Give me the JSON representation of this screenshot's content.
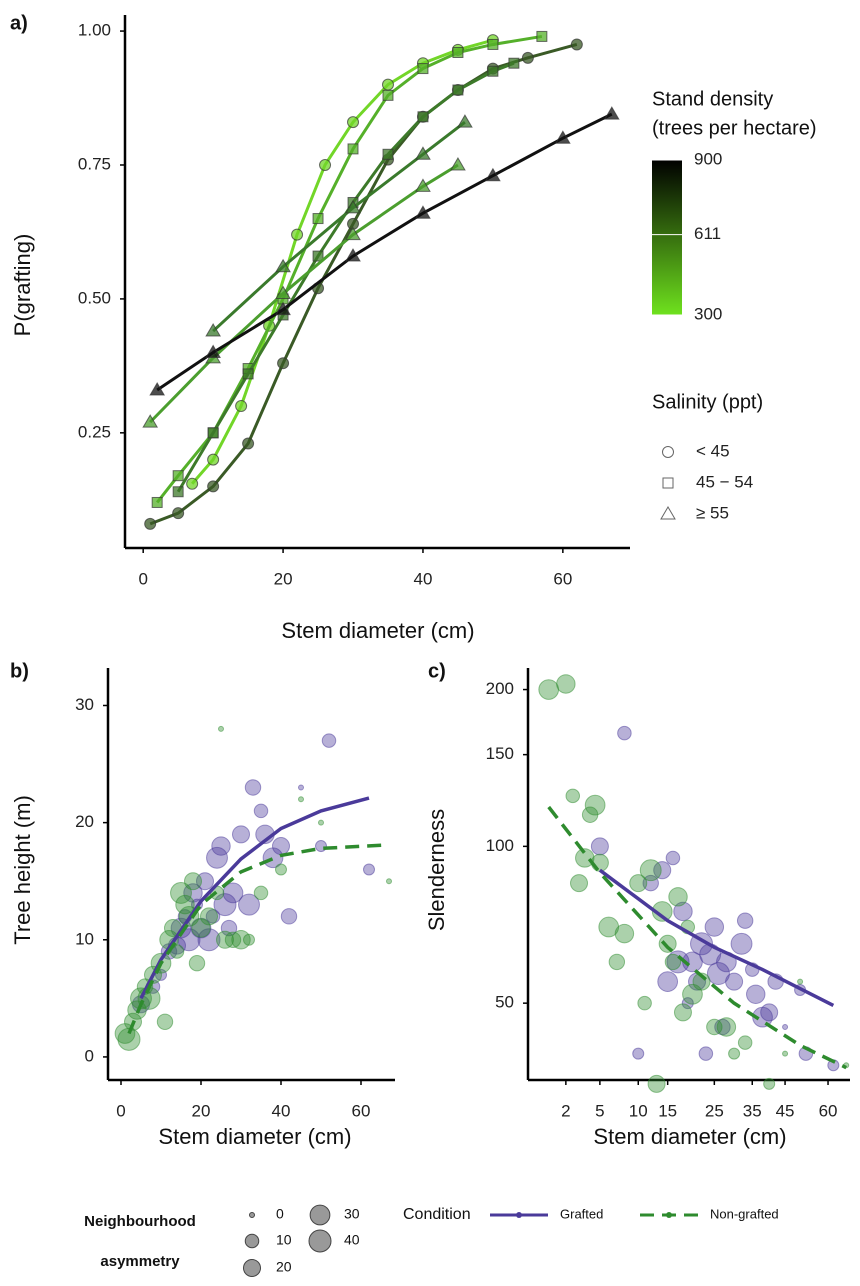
{
  "chart_data": [
    {
      "type": "line",
      "panel": "a)",
      "xlabel": "Stem diameter (cm)",
      "ylabel": "P(grafting)",
      "xlim": [
        -2.6,
        69.6
      ],
      "ylim": [
        0.035,
        1.03
      ],
      "xticks": [
        0,
        20,
        40,
        60
      ],
      "yticks": [
        {
          "value": 0.25,
          "label": "0.25"
        },
        {
          "value": 0.5,
          "label": "0.50"
        },
        {
          "value": 0.75,
          "label": "0.75"
        },
        {
          "value": 1,
          "label": "1.00"
        }
      ],
      "series": [
        {
          "marker": "circle",
          "color": "#72d628",
          "x": [
            7,
            10,
            14,
            18,
            22,
            26,
            30,
            35,
            40,
            45,
            50
          ],
          "y": [
            0.155,
            0.2,
            0.3,
            0.45,
            0.62,
            0.75,
            0.83,
            0.9,
            0.94,
            0.965,
            0.983
          ]
        },
        {
          "marker": "circle",
          "color": "#3a5a26",
          "x": [
            1,
            5,
            10,
            15,
            20,
            25,
            30,
            35,
            40,
            45,
            50,
            55,
            62
          ],
          "y": [
            0.08,
            0.1,
            0.15,
            0.23,
            0.38,
            0.52,
            0.64,
            0.76,
            0.84,
            0.89,
            0.93,
            0.95,
            0.975
          ]
        },
        {
          "marker": "square",
          "color": "#55b02a",
          "x": [
            2,
            5,
            10,
            15,
            20,
            25,
            30,
            35,
            40,
            45,
            50,
            57
          ],
          "y": [
            0.12,
            0.17,
            0.25,
            0.37,
            0.5,
            0.65,
            0.78,
            0.88,
            0.93,
            0.96,
            0.975,
            0.99
          ]
        },
        {
          "marker": "square",
          "color": "#3d7a2a",
          "x": [
            5,
            10,
            15,
            20,
            25,
            30,
            35,
            40,
            45,
            50,
            53
          ],
          "y": [
            0.14,
            0.25,
            0.36,
            0.47,
            0.58,
            0.68,
            0.77,
            0.84,
            0.89,
            0.925,
            0.94
          ]
        },
        {
          "marker": "triangle",
          "color": "#4b9e2e",
          "x": [
            1,
            10,
            20,
            30,
            40,
            45
          ],
          "y": [
            0.27,
            0.39,
            0.51,
            0.62,
            0.71,
            0.75
          ]
        },
        {
          "marker": "triangle",
          "color": "#3a7a2c",
          "x": [
            10,
            20,
            30,
            40,
            46
          ],
          "y": [
            0.44,
            0.56,
            0.67,
            0.77,
            0.83
          ]
        },
        {
          "marker": "triangle",
          "color": "#111111",
          "x": [
            2,
            10,
            20,
            30,
            40,
            50,
            60,
            67
          ],
          "y": [
            0.33,
            0.4,
            0.48,
            0.58,
            0.66,
            0.73,
            0.8,
            0.845
          ]
        }
      ],
      "colorbar": {
        "title": [
          "Stand density",
          "(trees per hectare)"
        ],
        "range": [
          300,
          900
        ],
        "ticks": [
          300,
          611,
          900
        ],
        "colors": [
          "#6fe21e",
          "#000000"
        ]
      },
      "shape_legend": {
        "title": "Salinity (ppt)",
        "entries": [
          {
            "label": "< 45",
            "marker": "circle"
          },
          {
            "label": "45 − 54",
            "marker": "square"
          },
          {
            "label": "≥ 55",
            "marker": "triangle"
          }
        ]
      }
    },
    {
      "type": "scatter",
      "panel": "b)",
      "xlabel": "Stem diameter (cm)",
      "ylabel": "Tree height (m)",
      "xlim": [
        -3.25,
        68.5
      ],
      "ylim": [
        -1.97,
        33.2
      ],
      "xticks": [
        0,
        20,
        40,
        60
      ],
      "yticks": [
        0,
        10,
        20,
        30
      ],
      "series": [
        {
          "name": "Grafted",
          "color": "#4a3a9a",
          "dash": false,
          "x": [
            5,
            8,
            10,
            12,
            14,
            15,
            16,
            17,
            18,
            19,
            20,
            21,
            22,
            23,
            24,
            25,
            26,
            27,
            28,
            30,
            32,
            33,
            35,
            36,
            38,
            40,
            42,
            45,
            50,
            52,
            62
          ],
          "y": [
            4.5,
            6,
            7,
            9,
            9.5,
            11,
            12,
            10,
            14,
            13,
            11,
            15,
            10,
            12,
            17,
            18,
            13,
            11,
            14,
            19,
            13,
            23,
            21,
            19,
            17,
            18,
            12,
            23,
            18,
            27,
            16
          ],
          "size": [
            20,
            10,
            5,
            15,
            20,
            30,
            10,
            40,
            25,
            5,
            30,
            20,
            40,
            10,
            35,
            25,
            40,
            15,
            30,
            20,
            35,
            15,
            10,
            25,
            30,
            20,
            15,
            0,
            5,
            10,
            5
          ],
          "fit": {
            "x": [
              5,
              10,
              20,
              30,
              40,
              50,
              62
            ],
            "y": [
              5,
              8.3,
              13.3,
              16.9,
              19.5,
              21,
              22.1
            ]
          }
        },
        {
          "name": "Non-grafted",
          "color": "#2e8b2e",
          "dash": true,
          "x": [
            1,
            2,
            3,
            4,
            5,
            6,
            7,
            8,
            10,
            11,
            12,
            13,
            14,
            15,
            16,
            17,
            18,
            19,
            20,
            22,
            24,
            25,
            26,
            28,
            30,
            32,
            35,
            40,
            45,
            50,
            67
          ],
          "y": [
            2,
            1.5,
            3,
            4,
            5,
            6,
            5,
            7,
            8,
            3,
            10,
            11,
            9,
            14,
            13,
            12,
            15,
            8,
            11,
            12,
            14,
            28,
            10,
            10,
            10,
            10,
            14,
            16,
            22,
            20,
            15
          ],
          "size": [
            30,
            40,
            20,
            25,
            35,
            15,
            40,
            20,
            30,
            15,
            25,
            20,
            10,
            35,
            25,
            30,
            20,
            15,
            25,
            20,
            10,
            0,
            20,
            15,
            25,
            5,
            10,
            5,
            0,
            0,
            0
          ],
          "fit": {
            "x": [
              2,
              5,
              10,
              20,
              30,
              40,
              50,
              67
            ],
            "y": [
              2,
              4.5,
              8,
              13,
              15.8,
              17.2,
              17.8,
              18.1
            ]
          }
        }
      ],
      "size_legend": {
        "title": [
          "Neighbourhood",
          "asymmetry"
        ],
        "sizes": [
          0,
          10,
          20,
          30,
          40
        ]
      }
    },
    {
      "type": "scatter",
      "panel": "c)",
      "xlabel": "Stem diameter (cm)",
      "ylabel": "Slenderness",
      "xscale": "sqrt",
      "yscale": "log",
      "xlim": [
        0.25,
        68.5
      ],
      "ylim": [
        35.6,
        220
      ],
      "xticks": [
        2,
        5,
        10,
        15,
        25,
        35,
        45,
        60
      ],
      "yticks": [
        50,
        100,
        150,
        200
      ],
      "legend_title": "Condition",
      "series": [
        {
          "name": "Grafted",
          "color": "#4a3a9a",
          "dash": false,
          "x": [
            5,
            8,
            10,
            12,
            14,
            15,
            16,
            17,
            18,
            19,
            20,
            21,
            22,
            23,
            24,
            25,
            26,
            27,
            28,
            30,
            32,
            33,
            35,
            36,
            38,
            40,
            42,
            45,
            50,
            52,
            62
          ],
          "y": [
            100,
            165,
            40,
            85,
            90,
            55,
            95,
            60,
            75,
            50,
            60,
            55,
            65,
            40,
            62,
            70,
            57,
            45,
            60,
            55,
            65,
            72,
            58,
            52,
            47,
            48,
            55,
            45,
            53,
            40,
            38
          ],
          "size": [
            20,
            10,
            5,
            15,
            20,
            30,
            10,
            40,
            25,
            5,
            30,
            20,
            40,
            10,
            35,
            25,
            40,
            15,
            30,
            20,
            35,
            15,
            10,
            25,
            30,
            20,
            15,
            0,
            5,
            10,
            5
          ],
          "fit": {
            "x": [
              5,
              15,
              25,
              38,
              62
            ],
            "y": [
              90,
              72,
              64,
              58,
              49.5
            ]
          }
        },
        {
          "name": "Non-grafted",
          "color": "#2e8b2e",
          "dash": true,
          "x": [
            1,
            2,
            2.5,
            3,
            3.5,
            4,
            4.5,
            5,
            6,
            7,
            8,
            10,
            11,
            12,
            13,
            14,
            15,
            16,
            17,
            18,
            19,
            20,
            22,
            25,
            28,
            30,
            33,
            40,
            45,
            50,
            67
          ],
          "y": [
            200,
            205,
            125,
            85,
            95,
            115,
            120,
            93,
            70,
            60,
            68,
            85,
            50,
            90,
            35,
            75,
            65,
            60,
            80,
            48,
            70,
            52,
            55,
            45,
            45,
            40,
            42,
            35,
            40,
            55,
            38
          ],
          "size": [
            30,
            25,
            10,
            20,
            25,
            15,
            30,
            20,
            30,
            15,
            25,
            20,
            10,
            35,
            20,
            30,
            20,
            15,
            25,
            20,
            10,
            30,
            20,
            15,
            25,
            5,
            10,
            5,
            0,
            0,
            0
          ],
          "fit": {
            "x": [
              1,
              5,
              15,
              30,
              50,
              67
            ],
            "y": [
              119,
              89,
              64,
              50,
              41.5,
              37.6
            ]
          }
        }
      ]
    }
  ]
}
